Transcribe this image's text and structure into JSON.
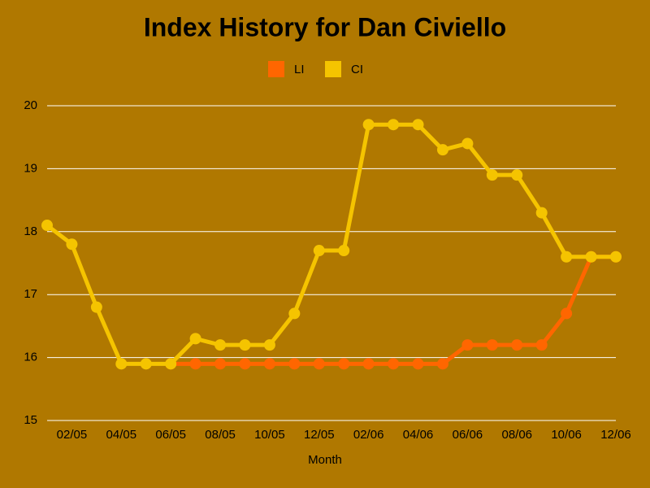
{
  "chart_data": {
    "type": "line",
    "title": "Index History for Dan Civiello",
    "x_label": "Month",
    "categories": [
      null,
      "02/05",
      null,
      "04/05",
      null,
      "06/05",
      null,
      "08/05",
      null,
      "10/05",
      null,
      "12/05",
      null,
      "02/06",
      null,
      "04/06",
      null,
      "06/06",
      null,
      "08/06",
      null,
      "10/06",
      null,
      "12/06"
    ],
    "series": [
      {
        "name": "LI",
        "color": "#ff6600",
        "values": [
          null,
          null,
          null,
          null,
          null,
          15.9,
          15.9,
          15.9,
          15.9,
          15.9,
          15.9,
          15.9,
          15.9,
          15.9,
          15.9,
          15.9,
          15.9,
          16.2,
          16.2,
          16.2,
          16.2,
          16.7,
          17.6,
          17.6
        ]
      },
      {
        "name": "CI",
        "color": "#f5c400",
        "values": [
          18.1,
          17.8,
          16.8,
          15.9,
          15.9,
          15.9,
          16.3,
          16.2,
          16.2,
          16.2,
          16.7,
          17.7,
          17.7,
          19.7,
          19.7,
          19.7,
          19.3,
          19.4,
          18.9,
          18.9,
          18.3,
          17.6,
          17.6,
          17.6
        ]
      }
    ],
    "ylim": [
      15,
      20
    ],
    "yticks": [
      15,
      16,
      17,
      18,
      19,
      20
    ],
    "grid": true,
    "legend": "top"
  }
}
